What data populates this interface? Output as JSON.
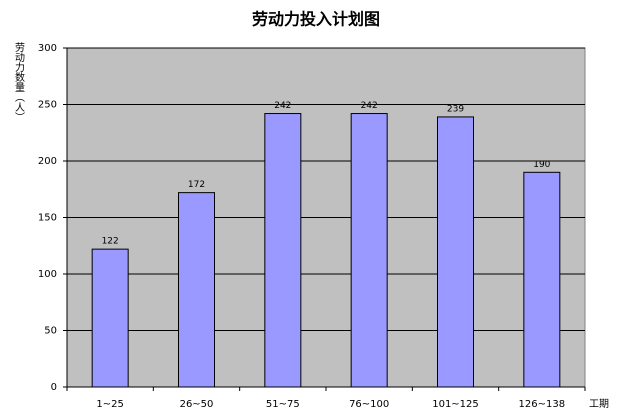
{
  "chart_data": {
    "type": "bar",
    "title": "劳动力投入计划图",
    "y_label": "劳动力数量（人）",
    "x_label": "工期",
    "categories": [
      "1~25",
      "26~50",
      "51~75",
      "76~100",
      "101~125",
      "126~138"
    ],
    "values": [
      122,
      172,
      242,
      242,
      239,
      190
    ],
    "color": "#9999ff",
    "ylim": [
      0,
      300
    ],
    "yticks": [
      0,
      50,
      100,
      150,
      200,
      250,
      300
    ],
    "grid": true,
    "plot_background": "#c0c0c0"
  }
}
